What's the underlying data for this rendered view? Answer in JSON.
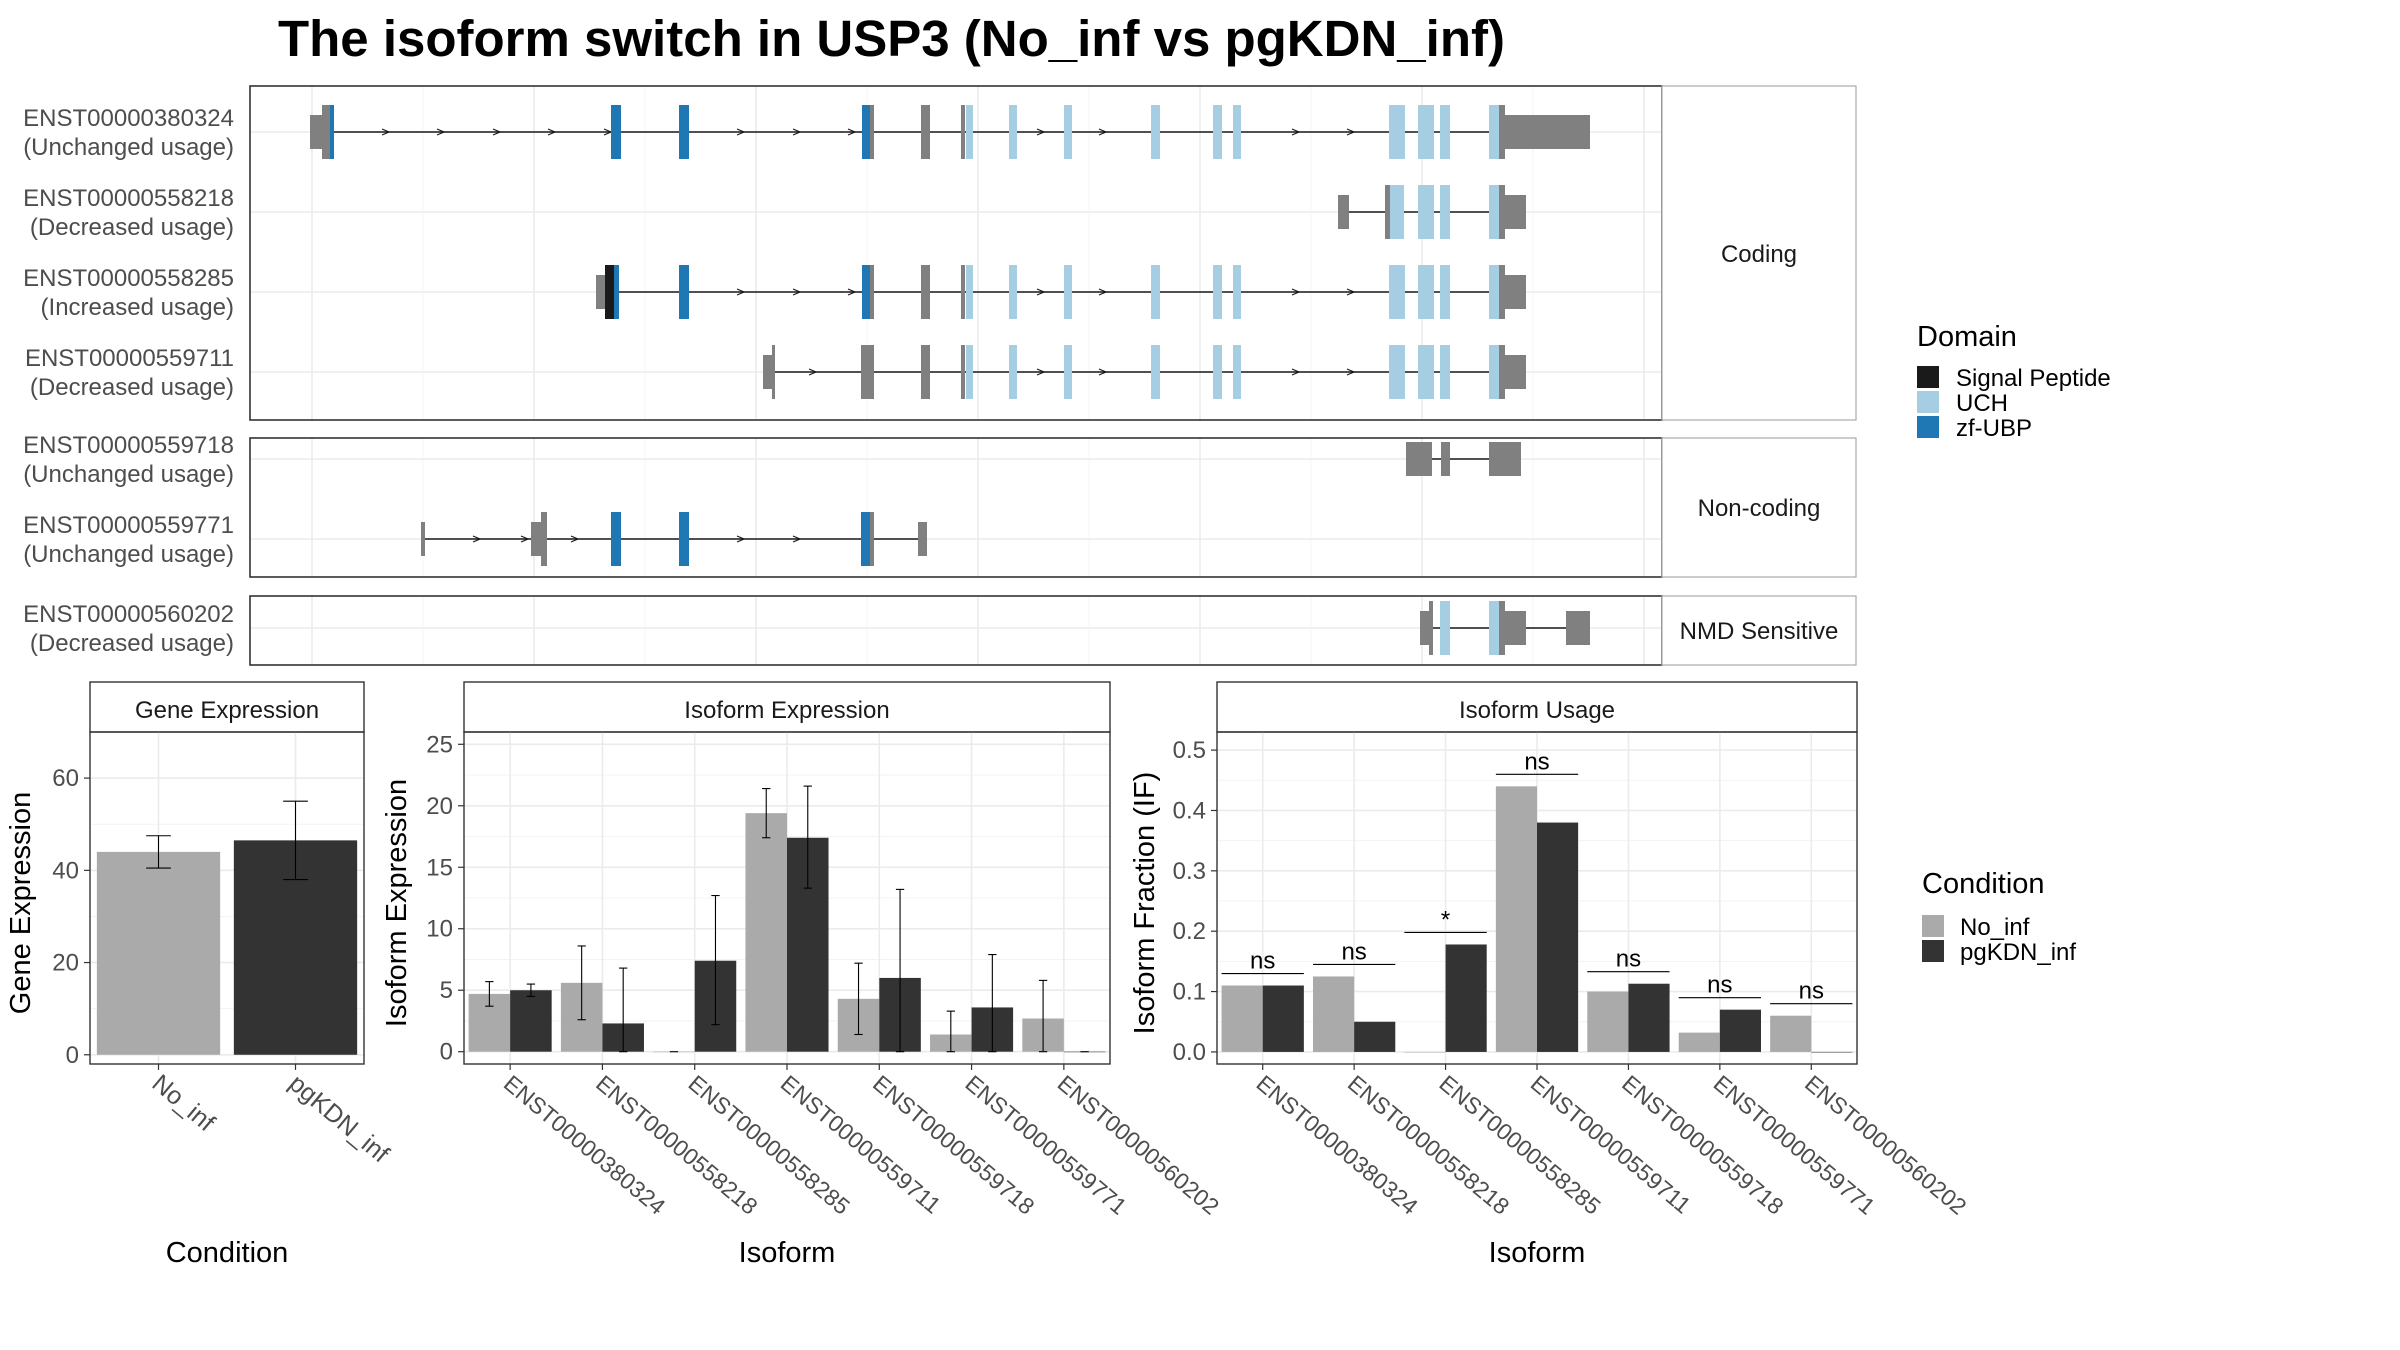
{
  "title": "The isoform switch in USP3 (No_inf vs pgKDN_inf)",
  "colors": {
    "signal_peptide": "#1a1a1a",
    "uch": "#a6cee3",
    "zf_ubp": "#1f78b4",
    "exon_gray": "#808080",
    "no_inf": "#aaaaaa",
    "pgkdn_inf": "#333333",
    "grid": "#ebebeb",
    "panel_border": "#333333",
    "strip_border": "#aaaaaa"
  },
  "structure": {
    "facets": [
      {
        "label": "Coding",
        "tracks": [
          {
            "id": "ENST00000380324",
            "usage": "(Unchanged usage)"
          },
          {
            "id": "ENST00000558218",
            "usage": "(Decreased usage)"
          },
          {
            "id": "ENST00000558285",
            "usage": "(Increased usage)"
          },
          {
            "id": "ENST00000559711",
            "usage": "(Decreased usage)"
          }
        ]
      },
      {
        "label": "Non-coding",
        "tracks": [
          {
            "id": "ENST00000559718",
            "usage": "(Unchanged usage)"
          },
          {
            "id": "ENST00000559771",
            "usage": "(Unchanged usage)"
          }
        ]
      },
      {
        "label": "NMD Sensitive",
        "tracks": [
          {
            "id": "ENST00000560202",
            "usage": "(Decreased usage)"
          }
        ]
      }
    ],
    "domain_legend": {
      "title": "Domain",
      "items": [
        {
          "label": "Signal Peptide",
          "color": "#1a1a1a"
        },
        {
          "label": "UCH",
          "color": "#a6cee3"
        },
        {
          "label": "zf-UBP",
          "color": "#1f78b4"
        }
      ]
    }
  },
  "condition_legend": {
    "title": "Condition",
    "items": [
      {
        "label": "No_inf",
        "color": "#aaaaaa"
      },
      {
        "label": "pgKDN_inf",
        "color": "#333333"
      }
    ]
  },
  "chart_data": [
    {
      "type": "bar",
      "title": "Gene Expression",
      "xlabel": "Condition",
      "ylabel": "Gene Expression",
      "categories": [
        "No_inf",
        "pgKDN_inf"
      ],
      "values": [
        44,
        46.5
      ],
      "error_low": [
        40.5,
        38
      ],
      "error_high": [
        47.5,
        55
      ],
      "ylim": [
        -2,
        70
      ],
      "yticks": [
        0,
        20,
        40,
        60
      ],
      "grid": true
    },
    {
      "type": "bar",
      "title": "Isoform Expression",
      "xlabel": "Isoform",
      "ylabel": "Isoform Expression",
      "categories": [
        "ENST00000380324",
        "ENST00000558218",
        "ENST00000558285",
        "ENST00000559711",
        "ENST00000559718",
        "ENST00000559771",
        "ENST00000560202"
      ],
      "series": [
        {
          "name": "No_inf",
          "values": [
            4.7,
            5.6,
            0,
            19.4,
            4.3,
            1.4,
            2.7
          ],
          "error_low": [
            3.7,
            2.6,
            0,
            17.4,
            1.4,
            0,
            0
          ],
          "error_high": [
            5.7,
            8.6,
            0,
            21.4,
            7.2,
            3.3,
            5.8
          ]
        },
        {
          "name": "pgKDN_inf",
          "values": [
            5.0,
            2.3,
            7.4,
            17.4,
            6.0,
            3.6,
            0
          ],
          "error_low": [
            4.5,
            0,
            2.2,
            13.3,
            0,
            0,
            0
          ],
          "error_high": [
            5.5,
            6.8,
            12.7,
            21.6,
            13.2,
            7.9,
            0
          ]
        }
      ],
      "ylim": [
        -1,
        26
      ],
      "yticks": [
        0,
        5,
        10,
        15,
        20,
        25
      ],
      "grid": true
    },
    {
      "type": "bar",
      "title": "Isoform Usage",
      "xlabel": "Isoform",
      "ylabel": "Isoform Fraction (IF)",
      "categories": [
        "ENST00000380324",
        "ENST00000558218",
        "ENST00000558285",
        "ENST00000559711",
        "ENST00000559718",
        "ENST00000559771",
        "ENST00000560202"
      ],
      "series": [
        {
          "name": "No_inf",
          "values": [
            0.11,
            0.125,
            0,
            0.44,
            0.1,
            0.032,
            0.06
          ]
        },
        {
          "name": "pgKDN_inf",
          "values": [
            0.11,
            0.05,
            0.178,
            0.38,
            0.113,
            0.07,
            0
          ]
        }
      ],
      "significance": [
        "ns",
        "ns",
        "*",
        "ns",
        "ns",
        "ns",
        "ns"
      ],
      "ylim": [
        -0.02,
        0.53
      ],
      "yticks": [
        0.0,
        0.1,
        0.2,
        0.3,
        0.4,
        0.5
      ],
      "ytick_labels": [
        "0.0",
        "0.1",
        "0.2",
        "0.3",
        "0.4",
        "0.5"
      ],
      "grid": true
    }
  ]
}
